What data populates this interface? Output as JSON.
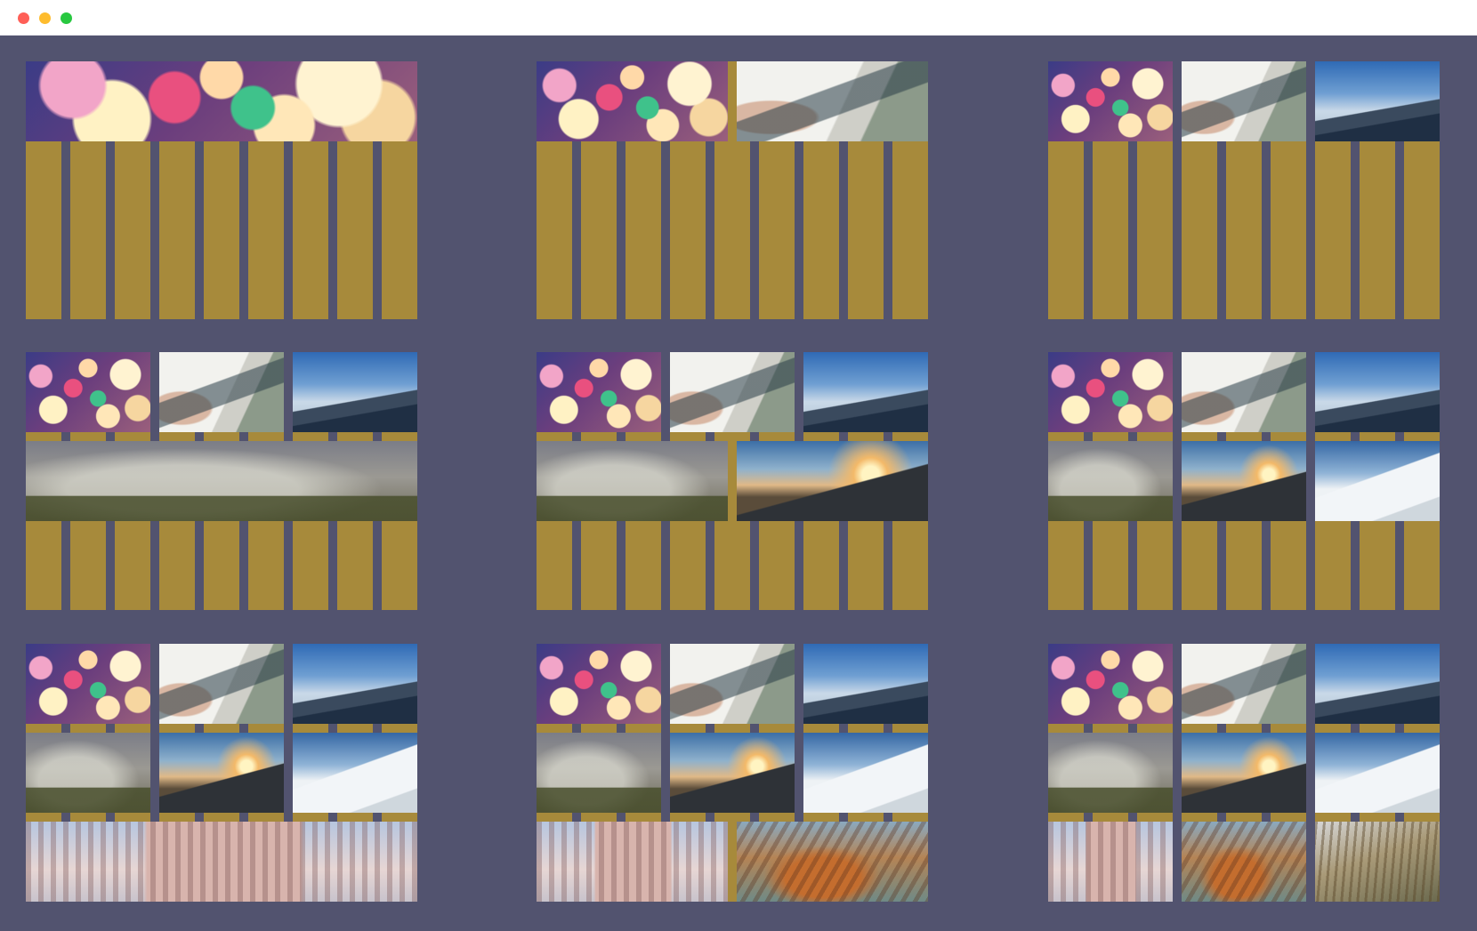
{
  "window": {
    "controls": [
      "close",
      "minimize",
      "maximize"
    ],
    "colors": {
      "close": "#ff5f57",
      "minimize": "#febc2e",
      "maximize": "#28c840"
    }
  },
  "grid": {
    "background_color": "#52536f",
    "column_color": "#a78a3b",
    "panel_count": 9,
    "columns_per_panel": 9
  },
  "images": [
    {
      "id": "bokeh-lights",
      "icon": "bokeh-photo"
    },
    {
      "id": "car-window",
      "icon": "car-photo"
    },
    {
      "id": "mountain-lake",
      "icon": "mountain-photo"
    },
    {
      "id": "foggy-hill",
      "icon": "fog-photo"
    },
    {
      "id": "mountain-road-sunset",
      "icon": "road-photo"
    },
    {
      "id": "snowy-slope",
      "icon": "snow-photo"
    },
    {
      "id": "leaning-tower",
      "icon": "tower-photo"
    },
    {
      "id": "harbor-boat",
      "icon": "boat-photo"
    },
    {
      "id": "autumn-forest",
      "icon": "forest-photo"
    }
  ],
  "panels": [
    {
      "image_count": 1
    },
    {
      "image_count": 2
    },
    {
      "image_count": 3
    },
    {
      "image_count": 4
    },
    {
      "image_count": 5
    },
    {
      "image_count": 6
    },
    {
      "image_count": 7
    },
    {
      "image_count": 8
    },
    {
      "image_count": 9
    }
  ]
}
